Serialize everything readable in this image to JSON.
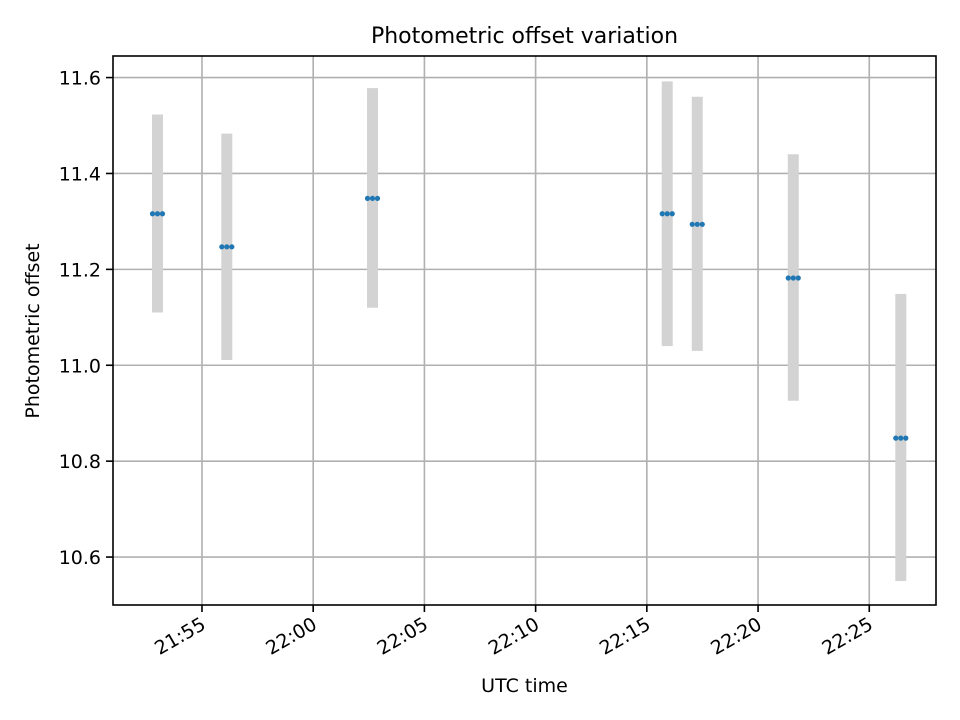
{
  "chart_data": {
    "type": "scatter",
    "title": "Photometric offset variation",
    "xlabel": "UTC time",
    "ylabel": "Photometric offset",
    "x_axis_kind": "time",
    "xlim": [
      "21:51:00",
      "22:28:00"
    ],
    "ylim": [
      10.5,
      11.645
    ],
    "x_ticks": [
      "21:55",
      "22:00",
      "22:05",
      "22:10",
      "22:15",
      "22:20",
      "22:25"
    ],
    "y_ticks": [
      10.6,
      10.8,
      11.0,
      11.2,
      11.4,
      11.6
    ],
    "y_tick_labels": [
      "10.6",
      "10.8",
      "11.0",
      "11.2",
      "11.4",
      "11.6"
    ],
    "grid": true,
    "colors": {
      "marker": "#1f77b4",
      "errorbar": "#d3d3d3",
      "grid": "#b0b0b0"
    },
    "series": [
      {
        "points": [
          {
            "x": "21:53:00",
            "y": 11.316,
            "yerr_low": 11.11,
            "yerr_high": 11.523
          },
          {
            "x": "21:56:07",
            "y": 11.247,
            "yerr_low": 11.011,
            "yerr_high": 11.483
          },
          {
            "x": "22:02:40",
            "y": 11.348,
            "yerr_low": 11.12,
            "yerr_high": 11.578
          },
          {
            "x": "22:15:55",
            "y": 11.316,
            "yerr_low": 11.04,
            "yerr_high": 11.592
          },
          {
            "x": "22:17:16",
            "y": 11.294,
            "yerr_low": 11.03,
            "yerr_high": 11.56
          },
          {
            "x": "22:21:35",
            "y": 11.182,
            "yerr_low": 10.926,
            "yerr_high": 11.44
          },
          {
            "x": "22:26:25",
            "y": 10.848,
            "yerr_low": 10.55,
            "yerr_high": 11.149
          }
        ]
      }
    ]
  }
}
